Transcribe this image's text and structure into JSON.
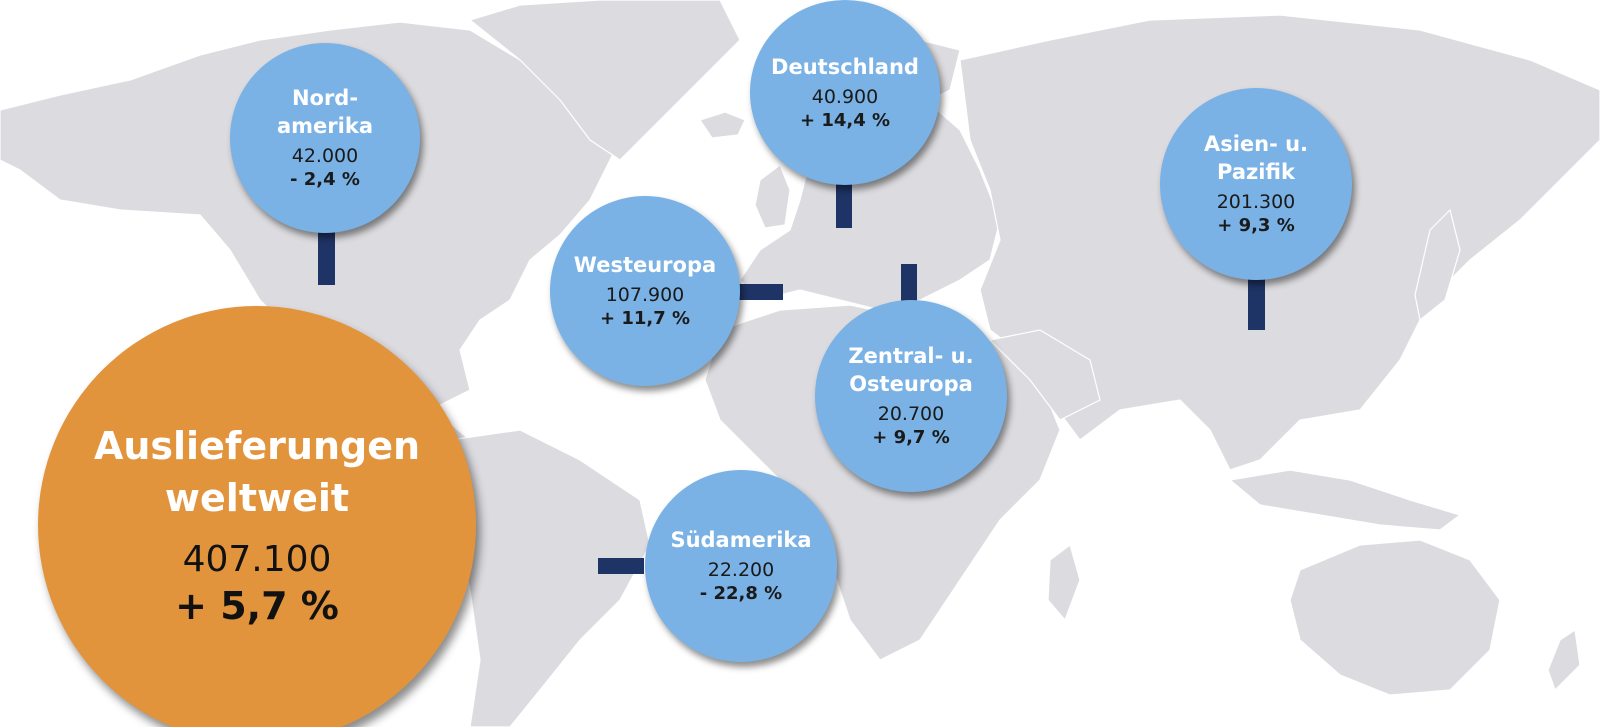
{
  "map": {
    "land_color": "#dcdce0",
    "region_color": "#7ab2e6",
    "world_color": "#e2943d",
    "connector_color": "#1f3466"
  },
  "world": {
    "name": "Auslieferungen\nweltweit",
    "value": "407.100",
    "change": "+ 5,7 %"
  },
  "regions": [
    {
      "name": "Nord-\namerika",
      "value": "42.000",
      "change": "- 2,4 %"
    },
    {
      "name": "Deutschland",
      "value": "40.900",
      "change": "+ 14,4 %"
    },
    {
      "name": "Asien- u.\nPazifik",
      "value": "201.300",
      "change": "+ 9,3 %"
    },
    {
      "name": "Westeuropa",
      "value": "107.900",
      "change": "+ 11,7 %"
    },
    {
      "name": "Zentral- u.\nOsteuropa",
      "value": "20.700",
      "change": "+ 9,7 %"
    },
    {
      "name": "Südamerika",
      "value": "22.200",
      "change": "- 22,8 %"
    }
  ]
}
